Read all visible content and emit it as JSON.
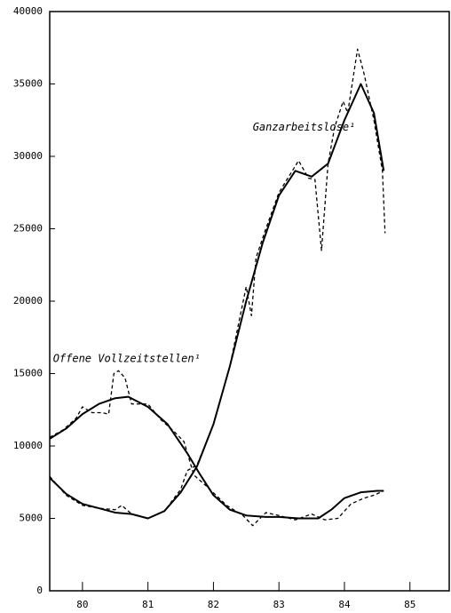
{
  "chart_data": {
    "type": "line",
    "xlim": [
      79.5,
      85.6
    ],
    "xticks": [
      80,
      81,
      82,
      83,
      84,
      85
    ],
    "ylim": [
      0,
      40000
    ],
    "yticks": [
      0,
      5000,
      10000,
      15000,
      20000,
      25000,
      30000,
      35000,
      40000
    ],
    "annotations": [
      {
        "text": "Offene Vollzeitstellen¹",
        "x": 79.55,
        "y": 16000
      },
      {
        "text": "Ganzarbeitslose¹",
        "x": 82.6,
        "y": 32000
      }
    ],
    "series": [
      {
        "style": "solid",
        "color": "#000",
        "x": [
          79.5,
          79.75,
          80,
          80.25,
          80.5,
          80.7,
          81,
          81.3,
          81.6,
          81.8,
          82,
          82.25,
          82.5,
          82.8,
          83,
          83.3,
          83.6,
          83.8,
          84,
          84.25,
          84.5,
          84.6
        ],
        "values": [
          10500,
          11200,
          12200,
          12900,
          13300,
          13400,
          12700,
          11500,
          9500,
          8000,
          6600,
          5600,
          5200,
          5100,
          5100,
          5000,
          5000,
          5600,
          6400,
          6800,
          6900,
          6900
        ]
      },
      {
        "style": "dashed",
        "color": "#000",
        "x": [
          79.5,
          79.7,
          79.9,
          80,
          80.15,
          80.3,
          80.4,
          80.48,
          80.55,
          80.65,
          80.75,
          81,
          81.2,
          81.4,
          81.55,
          81.7,
          81.9,
          82.2,
          82.45,
          82.6,
          82.8,
          83,
          83.25,
          83.5,
          83.7,
          83.9,
          84.1,
          84.3,
          84.45,
          84.6
        ],
        "values": [
          10600,
          11100,
          11900,
          12700,
          12300,
          12300,
          12200,
          15000,
          15200,
          14700,
          12900,
          12900,
          11800,
          11000,
          10300,
          8000,
          7200,
          5900,
          5200,
          4500,
          5400,
          5200,
          4900,
          5300,
          4900,
          5000,
          6000,
          6400,
          6600,
          6900
        ]
      },
      {
        "style": "solid",
        "color": "#000",
        "x": [
          79.5,
          79.75,
          80,
          80.25,
          80.5,
          80.75,
          81,
          81.25,
          81.5,
          81.75,
          82,
          82.25,
          82.5,
          82.75,
          83,
          83.25,
          83.5,
          83.75,
          84,
          84.25,
          84.45,
          84.6
        ],
        "values": [
          7800,
          6700,
          6000,
          5700,
          5400,
          5300,
          5000,
          5500,
          6800,
          8600,
          11500,
          15500,
          20000,
          24000,
          27300,
          29000,
          28600,
          29500,
          32500,
          35000,
          33000,
          29000
        ]
      },
      {
        "style": "dashed",
        "color": "#000",
        "x": [
          79.5,
          79.75,
          80,
          80.25,
          80.5,
          80.6,
          80.75,
          81,
          81.25,
          81.5,
          81.6,
          81.75,
          82,
          82.25,
          82.5,
          82.58,
          82.65,
          82.8,
          83,
          83.3,
          83.45,
          83.55,
          83.65,
          83.75,
          83.85,
          83.98,
          84.05,
          84.2,
          84.3,
          84.45,
          84.58,
          84.62
        ],
        "values": [
          7900,
          6600,
          5900,
          5700,
          5600,
          5900,
          5300,
          5000,
          5500,
          7000,
          8300,
          8700,
          11500,
          15500,
          21000,
          19000,
          23000,
          25000,
          27500,
          29700,
          28500,
          28400,
          23500,
          29500,
          32000,
          33800,
          33000,
          37400,
          35700,
          32500,
          29000,
          24700
        ]
      }
    ]
  }
}
